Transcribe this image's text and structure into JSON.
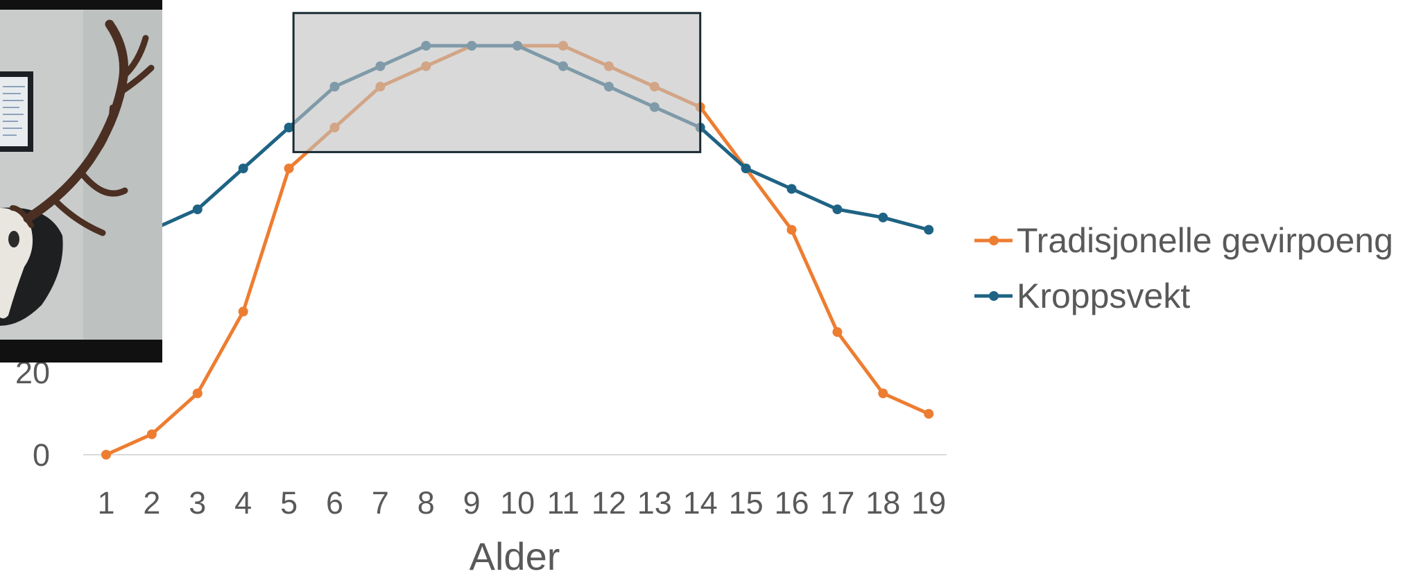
{
  "chart_data": {
    "type": "line",
    "title": "",
    "xlabel": "Alder",
    "ylabel": "",
    "categories": [
      "1",
      "2",
      "3",
      "4",
      "5",
      "6",
      "7",
      "8",
      "9",
      "10",
      "11",
      "12",
      "13",
      "14",
      "15",
      "16",
      "17",
      "18",
      "19"
    ],
    "series": [
      {
        "name": "Tradisjonelle gevirpoeng",
        "color": "#ED7D31",
        "values": [
          0,
          5,
          15,
          35,
          70,
          80,
          90,
          95,
          100,
          100,
          100,
          95,
          90,
          85,
          70,
          55,
          30,
          15,
          10
        ]
      },
      {
        "name": "Kroppsvekt",
        "color": "#1F6384",
        "values": [
          50,
          55,
          60,
          70,
          80,
          90,
          95,
          100,
          100,
          100,
          95,
          90,
          85,
          80,
          70,
          65,
          60,
          58,
          55
        ]
      }
    ],
    "y_ticks_visible": [
      "20",
      "0"
    ],
    "ylim": [
      0,
      100
    ],
    "grid": false,
    "legend_position": "right",
    "highlight_range": {
      "from": 5.1,
      "to": 14,
      "y_from": 74,
      "y_to": 108,
      "color": "#BFBFBF"
    }
  },
  "photo": {
    "subject": "red deer skull with antlers mounted on wall"
  }
}
